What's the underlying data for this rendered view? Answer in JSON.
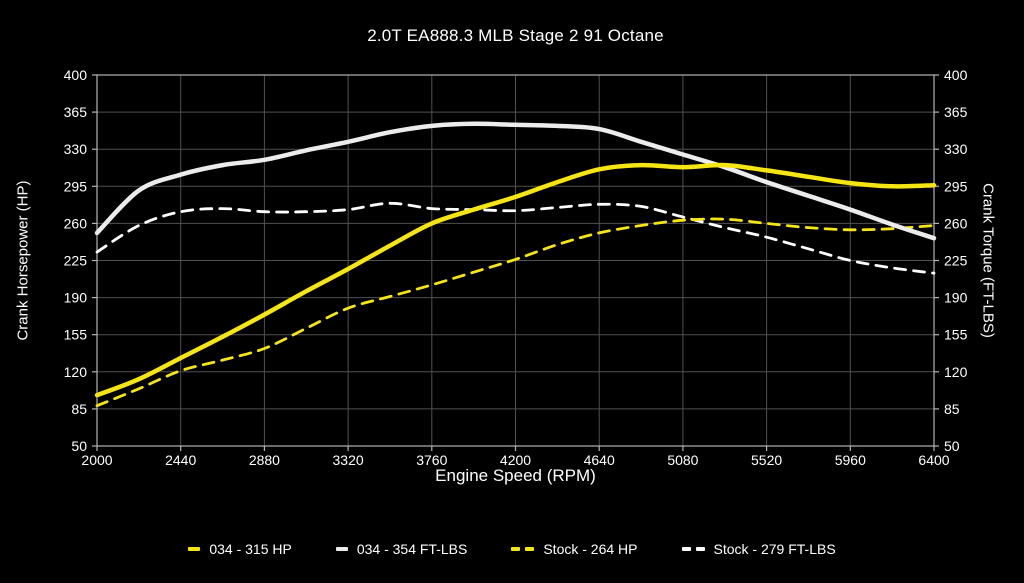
{
  "title": "2.0T EA888.3 MLB Stage 2 91 Octane",
  "colors": {
    "background": "#000000",
    "text": "#ffffff",
    "grid": "#515151",
    "frame": "#b5b5b5",
    "accent_yellow": "#f5e513",
    "accent_white": "#ececec"
  },
  "chart_data": {
    "type": "line",
    "title": "2.0T EA888.3 MLB Stage 2 91 Octane",
    "xlabel": "Engine Speed (RPM)",
    "ylabel_left": "Crank Horsepower (HP)",
    "ylabel_right": "Crank Torque (FT-LBS)",
    "xlim": [
      2000,
      6400
    ],
    "ylim": [
      50,
      400
    ],
    "x_ticks": [
      2000,
      2440,
      2880,
      3320,
      3760,
      4200,
      4640,
      5080,
      5520,
      5960,
      6400
    ],
    "y_ticks": [
      50,
      85,
      120,
      155,
      190,
      225,
      260,
      295,
      330,
      365,
      400
    ],
    "grid": true,
    "legend_position": "bottom",
    "x": [
      2000,
      2220,
      2440,
      2660,
      2880,
      3100,
      3320,
      3540,
      3760,
      3980,
      4200,
      4420,
      4640,
      4860,
      5080,
      5300,
      5520,
      5740,
      5960,
      6180,
      6400
    ],
    "series": [
      {
        "name": "Stock - 279 FT-LBS",
        "axis": "torque",
        "color": "#ffffff",
        "style": "dashed",
        "width": 2.8,
        "values": [
          233,
          258,
          271,
          274,
          271,
          271,
          273,
          279,
          274,
          273,
          272,
          275,
          278,
          276,
          266,
          256,
          247,
          236,
          225,
          218,
          213
        ]
      },
      {
        "name": "Stock - 264 HP",
        "axis": "hp",
        "color": "#f5e513",
        "style": "dashed",
        "width": 2.8,
        "values": [
          88,
          104,
          121,
          131,
          142,
          161,
          180,
          191,
          202,
          214,
          226,
          240,
          251,
          258,
          263,
          264,
          260,
          256,
          254,
          255,
          258
        ]
      },
      {
        "name": "034 - 354 FT-LBS",
        "axis": "torque",
        "color": "#ececec",
        "style": "solid",
        "width": 4.5,
        "values": [
          251,
          291,
          306,
          315,
          320,
          329,
          337,
          346,
          352,
          354,
          353,
          352,
          349,
          337,
          325,
          313,
          299,
          286,
          273,
          259,
          246
        ]
      },
      {
        "name": "034 - 315 HP",
        "axis": "hp",
        "color": "#f5e513",
        "style": "solid",
        "width": 4.5,
        "values": [
          98,
          113,
          133,
          153,
          174,
          196,
          217,
          239,
          260,
          273,
          285,
          299,
          311,
          315,
          313,
          315,
          310,
          304,
          298,
          295,
          296
        ]
      }
    ],
    "legend_order": [
      "034 - 315 HP",
      "034 - 354 FT-LBS",
      "Stock - 264 HP",
      "Stock - 279 FT-LBS"
    ]
  }
}
